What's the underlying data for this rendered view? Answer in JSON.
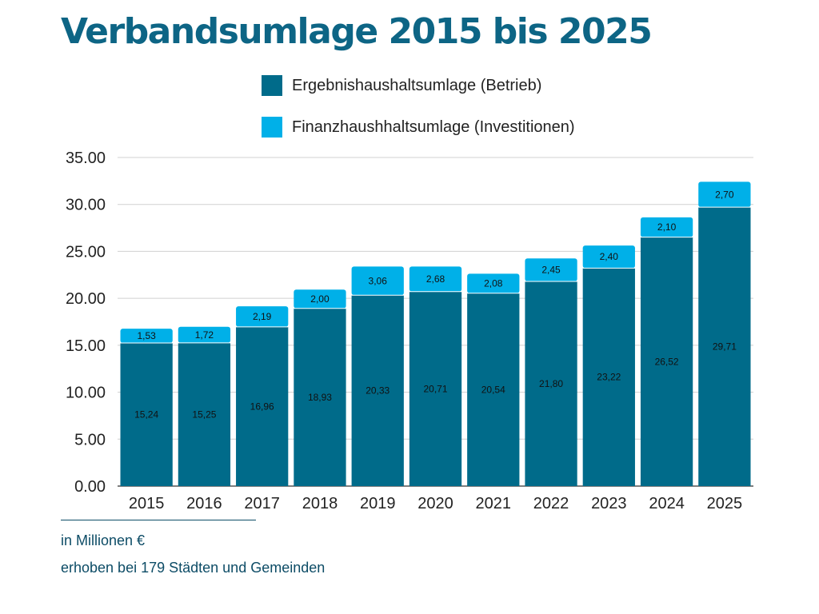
{
  "title": "Verbandsumlage 2015 bis 2025",
  "footnote_unit": "in Millionen €",
  "footnote_source": "erhoben bei 179 Städten und Gemeinden",
  "chart_data": {
    "type": "bar",
    "stacked": true,
    "categories": [
      "2015",
      "2016",
      "2017",
      "2018",
      "2019",
      "2020",
      "2021",
      "2022",
      "2023",
      "2024",
      "2025"
    ],
    "series": [
      {
        "name": "Ergebnishaushaltsumlage (Betrieb)",
        "color": "#006b8a",
        "values": [
          15.24,
          15.25,
          16.96,
          18.93,
          20.33,
          20.71,
          20.54,
          21.8,
          23.22,
          26.52,
          29.71
        ],
        "labels": [
          "15,24",
          "15,25",
          "16,96",
          "18,93",
          "20,33",
          "20,71",
          "20,54",
          "21,80",
          "23,22",
          "26,52",
          "29,71"
        ]
      },
      {
        "name": "Finanzhaushhaltsumlage (Investitionen)",
        "color": "#00b0e8",
        "values": [
          1.53,
          1.72,
          2.19,
          2.0,
          3.06,
          2.68,
          2.08,
          2.45,
          2.4,
          2.1,
          2.7
        ],
        "labels": [
          "1,53",
          "1,72",
          "2,19",
          "2,00",
          "3,06",
          "2,68",
          "2,08",
          "2,45",
          "2,40",
          "2,10",
          "2,70"
        ]
      }
    ],
    "ylim": [
      0,
      35
    ],
    "yticks": [
      0,
      5,
      10,
      15,
      20,
      25,
      30,
      35
    ],
    "ytick_labels": [
      "0.00",
      "5.00",
      "10.00",
      "15.00",
      "20.00",
      "25.00",
      "30.00",
      "35.00"
    ],
    "grid": true,
    "legend": "top"
  }
}
